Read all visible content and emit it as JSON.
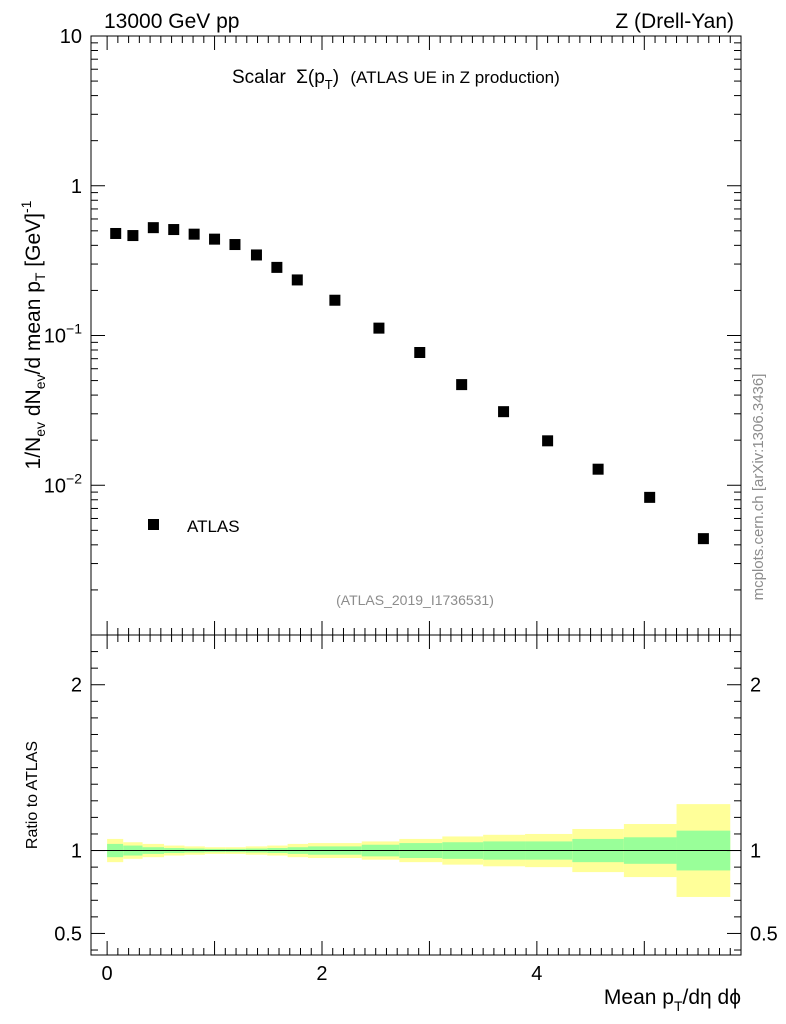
{
  "header": {
    "left": "13000 GeV pp",
    "right": "Z (Drell-Yan)"
  },
  "side_label": "mcplots.cern.ch [arXiv:1306.3436]",
  "chart_data": [
    {
      "type": "scatter",
      "panel": "main",
      "title_main": "Scalar",
      "title_sigma": "Σ(p",
      "title_sub": "T",
      "title_close": ")",
      "title_rest": "(ATLAS UE in Z production)",
      "ylabel_parts": [
        "1/N",
        "ev",
        " dN",
        "ev",
        "/d mean p",
        "T",
        " [GeV]",
        "-1"
      ],
      "yscale": "log",
      "ylim": [
        0.001,
        10
      ],
      "yticks": [
        {
          "value": 10,
          "label": "10"
        },
        {
          "value": 1,
          "label": "1"
        },
        {
          "value": 0.1,
          "base": "10",
          "exp": "−1"
        },
        {
          "value": 0.01,
          "base": "10",
          "exp": "−2"
        }
      ],
      "xlim": [
        -0.15,
        5.9
      ],
      "watermark": "(ATLAS_2019_I1736531)",
      "legend": {
        "marker": "square",
        "label": "ATLAS",
        "placement": "lower-left"
      },
      "series": [
        {
          "name": "ATLAS",
          "x": [
            0.08,
            0.24,
            0.43,
            0.62,
            0.81,
            1.0,
            1.19,
            1.39,
            1.58,
            1.77,
            2.12,
            2.53,
            2.91,
            3.3,
            3.69,
            4.1,
            4.57,
            5.05,
            5.55
          ],
          "y": [
            0.48,
            0.465,
            0.525,
            0.51,
            0.475,
            0.44,
            0.405,
            0.345,
            0.285,
            0.235,
            0.172,
            0.112,
            0.077,
            0.047,
            0.031,
            0.0198,
            0.0128,
            0.0083,
            0.0044
          ]
        }
      ]
    },
    {
      "type": "area",
      "panel": "ratio",
      "ylabel": "Ratio to ATLAS",
      "ylim": [
        0.37,
        2.3
      ],
      "yticks": [
        {
          "value": 2,
          "label": "2"
        },
        {
          "value": 1,
          "label": "1"
        },
        {
          "value": 0.5,
          "label": "0.5"
        }
      ],
      "xlabel_parts": [
        "Mean p",
        "T",
        "/dη dϕ"
      ],
      "xlim": [
        -0.15,
        5.9
      ],
      "xticks": [
        {
          "value": 0,
          "label": "0"
        },
        {
          "value": 2,
          "label": "2"
        },
        {
          "value": 4,
          "label": "4"
        }
      ],
      "bin_edges": [
        0,
        0.15,
        0.33,
        0.53,
        0.72,
        0.91,
        1.1,
        1.29,
        1.49,
        1.68,
        1.87,
        2.37,
        2.72,
        3.12,
        3.5,
        3.89,
        4.33,
        4.81,
        5.3,
        5.8
      ],
      "outer_band": {
        "name": "yellow",
        "lo": [
          0.93,
          0.95,
          0.96,
          0.97,
          0.975,
          0.98,
          0.98,
          0.975,
          0.97,
          0.96,
          0.955,
          0.945,
          0.93,
          0.915,
          0.905,
          0.9,
          0.87,
          0.84,
          0.72
        ],
        "hi": [
          1.07,
          1.05,
          1.04,
          1.03,
          1.025,
          1.02,
          1.02,
          1.025,
          1.03,
          1.04,
          1.045,
          1.055,
          1.07,
          1.085,
          1.095,
          1.1,
          1.13,
          1.16,
          1.28
        ]
      },
      "inner_band": {
        "name": "green",
        "lo": [
          0.96,
          0.97,
          0.98,
          0.985,
          0.988,
          0.99,
          0.99,
          0.988,
          0.985,
          0.98,
          0.975,
          0.965,
          0.955,
          0.95,
          0.945,
          0.945,
          0.93,
          0.92,
          0.88
        ],
        "hi": [
          1.04,
          1.03,
          1.02,
          1.015,
          1.012,
          1.01,
          1.01,
          1.012,
          1.015,
          1.02,
          1.025,
          1.035,
          1.045,
          1.05,
          1.055,
          1.055,
          1.07,
          1.08,
          1.12
        ]
      },
      "reference_line": 1,
      "colors": {
        "outer": "#ffff99",
        "inner": "#99ff99",
        "line": "#000000"
      }
    }
  ]
}
